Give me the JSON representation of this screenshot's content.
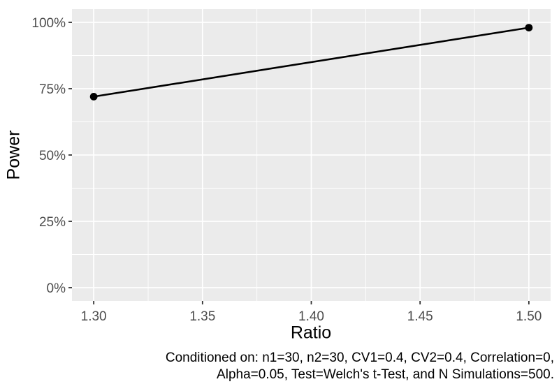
{
  "figure": {
    "background": "#FFFFFF"
  },
  "chart_data": {
    "type": "line",
    "title": "",
    "xlabel": "Ratio",
    "ylabel": "Power",
    "series": [
      {
        "name": "Power",
        "x": [
          1.3,
          1.5
        ],
        "y_percent": [
          72,
          98
        ]
      }
    ],
    "x_ticks": [
      1.3,
      1.35,
      1.4,
      1.45,
      1.5
    ],
    "x_tick_labels": [
      "1.30",
      "1.35",
      "1.40",
      "1.45",
      "1.50"
    ],
    "x_minor_ticks": [
      1.325,
      1.375,
      1.425,
      1.475
    ],
    "y_ticks": [
      0,
      25,
      50,
      75,
      100
    ],
    "y_tick_labels": [
      "0%",
      "25%",
      "50%",
      "75%",
      "100%"
    ],
    "y_minor_ticks": [
      12.5,
      37.5,
      62.5,
      87.5
    ],
    "xlim": [
      1.29,
      1.51
    ],
    "ylim": [
      -5,
      105
    ],
    "grid": "on",
    "legend": "none",
    "caption_lines": [
      "Conditioned on: n1=30, n2=30, CV1=0.4, CV2=0.4, Correlation=0,",
      "Alpha=0.05, Test=Welch's t-Test, and N Simulations=500."
    ],
    "colors": {
      "panel_bg": "#EBEBEB",
      "grid": "#FFFFFF",
      "line": "#000000",
      "point": "#000000",
      "tick_label": "#4D4D4D",
      "tick_mark": "#333333",
      "axis_title": "#000000",
      "caption": "#000000"
    }
  }
}
